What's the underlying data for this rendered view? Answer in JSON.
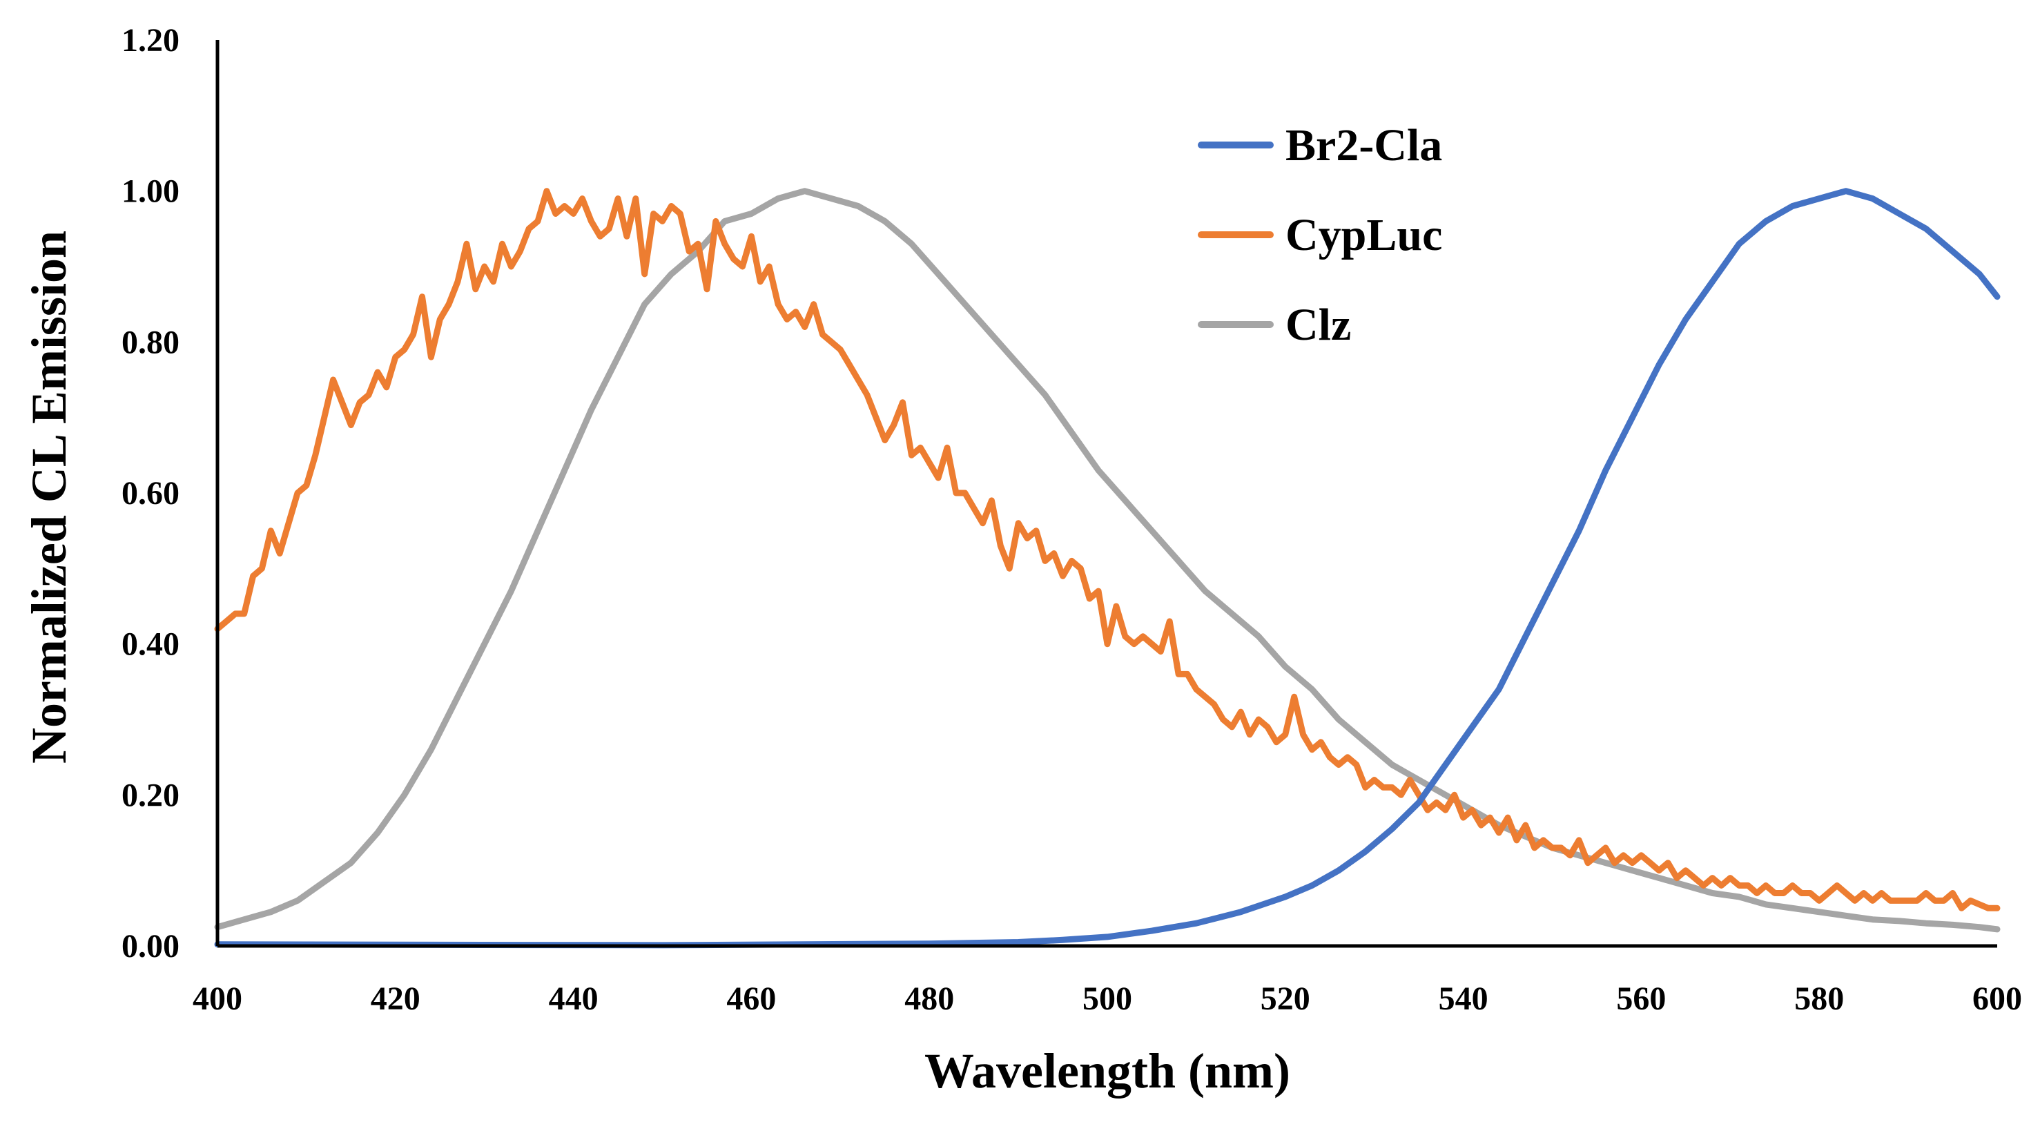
{
  "chart_data": {
    "type": "line",
    "title": "",
    "xlabel": "Wavelength (nm)",
    "ylabel": "Normalized CL Emission",
    "xlim": [
      400,
      600
    ],
    "ylim": [
      0,
      1.2
    ],
    "xticks": [
      "400",
      "420",
      "440",
      "460",
      "480",
      "500",
      "520",
      "540",
      "560",
      "580",
      "600"
    ],
    "yticks": [
      "0.00",
      "0.20",
      "0.40",
      "0.60",
      "0.80",
      "1.00",
      "1.20"
    ],
    "grid": false,
    "legend_position": "top-right",
    "series": [
      {
        "name": "Br2-Cla",
        "color": "#4472C4",
        "points": [
          [
            400,
            0.002
          ],
          [
            450,
            0.001
          ],
          [
            480,
            0.003
          ],
          [
            490,
            0.005
          ],
          [
            495,
            0.008
          ],
          [
            500,
            0.012
          ],
          [
            505,
            0.02
          ],
          [
            510,
            0.03
          ],
          [
            515,
            0.045
          ],
          [
            520,
            0.065
          ],
          [
            523,
            0.08
          ],
          [
            526,
            0.1
          ],
          [
            529,
            0.125
          ],
          [
            532,
            0.155
          ],
          [
            535,
            0.19
          ],
          [
            538,
            0.24
          ],
          [
            541,
            0.29
          ],
          [
            544,
            0.34
          ],
          [
            547,
            0.41
          ],
          [
            550,
            0.48
          ],
          [
            553,
            0.55
          ],
          [
            556,
            0.63
          ],
          [
            559,
            0.7
          ],
          [
            562,
            0.77
          ],
          [
            565,
            0.83
          ],
          [
            568,
            0.88
          ],
          [
            571,
            0.93
          ],
          [
            574,
            0.96
          ],
          [
            577,
            0.98
          ],
          [
            580,
            0.99
          ],
          [
            583,
            1.0
          ],
          [
            586,
            0.99
          ],
          [
            589,
            0.97
          ],
          [
            592,
            0.95
          ],
          [
            595,
            0.92
          ],
          [
            598,
            0.89
          ],
          [
            600,
            0.86
          ]
        ]
      },
      {
        "name": "CypLuc",
        "color": "#ED7D31",
        "points": [
          [
            400,
            0.42
          ],
          [
            401,
            0.43
          ],
          [
            402,
            0.44
          ],
          [
            403,
            0.44
          ],
          [
            404,
            0.49
          ],
          [
            405,
            0.5
          ],
          [
            406,
            0.55
          ],
          [
            407,
            0.52
          ],
          [
            408,
            0.56
          ],
          [
            409,
            0.6
          ],
          [
            410,
            0.61
          ],
          [
            411,
            0.65
          ],
          [
            412,
            0.7
          ],
          [
            413,
            0.75
          ],
          [
            414,
            0.72
          ],
          [
            415,
            0.69
          ],
          [
            416,
            0.72
          ],
          [
            417,
            0.73
          ],
          [
            418,
            0.76
          ],
          [
            419,
            0.74
          ],
          [
            420,
            0.78
          ],
          [
            421,
            0.79
          ],
          [
            422,
            0.81
          ],
          [
            423,
            0.86
          ],
          [
            424,
            0.78
          ],
          [
            425,
            0.83
          ],
          [
            426,
            0.85
          ],
          [
            427,
            0.88
          ],
          [
            428,
            0.93
          ],
          [
            429,
            0.87
          ],
          [
            430,
            0.9
          ],
          [
            431,
            0.88
          ],
          [
            432,
            0.93
          ],
          [
            433,
            0.9
          ],
          [
            434,
            0.92
          ],
          [
            435,
            0.95
          ],
          [
            436,
            0.96
          ],
          [
            437,
            1.0
          ],
          [
            438,
            0.97
          ],
          [
            439,
            0.98
          ],
          [
            440,
            0.97
          ],
          [
            441,
            0.99
          ],
          [
            442,
            0.96
          ],
          [
            443,
            0.94
          ],
          [
            444,
            0.95
          ],
          [
            445,
            0.99
          ],
          [
            446,
            0.94
          ],
          [
            447,
            0.99
          ],
          [
            448,
            0.89
          ],
          [
            449,
            0.97
          ],
          [
            450,
            0.96
          ],
          [
            451,
            0.98
          ],
          [
            452,
            0.97
          ],
          [
            453,
            0.92
          ],
          [
            454,
            0.93
          ],
          [
            455,
            0.87
          ],
          [
            456,
            0.96
          ],
          [
            457,
            0.93
          ],
          [
            458,
            0.91
          ],
          [
            459,
            0.9
          ],
          [
            460,
            0.94
          ],
          [
            461,
            0.88
          ],
          [
            462,
            0.9
          ],
          [
            463,
            0.85
          ],
          [
            464,
            0.83
          ],
          [
            465,
            0.84
          ],
          [
            466,
            0.82
          ],
          [
            467,
            0.85
          ],
          [
            468,
            0.81
          ],
          [
            469,
            0.8
          ],
          [
            470,
            0.79
          ],
          [
            471,
            0.77
          ],
          [
            472,
            0.75
          ],
          [
            473,
            0.73
          ],
          [
            474,
            0.7
          ],
          [
            475,
            0.67
          ],
          [
            476,
            0.69
          ],
          [
            477,
            0.72
          ],
          [
            478,
            0.65
          ],
          [
            479,
            0.66
          ],
          [
            480,
            0.64
          ],
          [
            481,
            0.62
          ],
          [
            482,
            0.66
          ],
          [
            483,
            0.6
          ],
          [
            484,
            0.6
          ],
          [
            485,
            0.58
          ],
          [
            486,
            0.56
          ],
          [
            487,
            0.59
          ],
          [
            488,
            0.53
          ],
          [
            489,
            0.5
          ],
          [
            490,
            0.56
          ],
          [
            491,
            0.54
          ],
          [
            492,
            0.55
          ],
          [
            493,
            0.51
          ],
          [
            494,
            0.52
          ],
          [
            495,
            0.49
          ],
          [
            496,
            0.51
          ],
          [
            497,
            0.5
          ],
          [
            498,
            0.46
          ],
          [
            499,
            0.47
          ],
          [
            500,
            0.4
          ],
          [
            501,
            0.45
          ],
          [
            502,
            0.41
          ],
          [
            503,
            0.4
          ],
          [
            504,
            0.41
          ],
          [
            505,
            0.4
          ],
          [
            506,
            0.39
          ],
          [
            507,
            0.43
          ],
          [
            508,
            0.36
          ],
          [
            509,
            0.36
          ],
          [
            510,
            0.34
          ],
          [
            511,
            0.33
          ],
          [
            512,
            0.32
          ],
          [
            513,
            0.3
          ],
          [
            514,
            0.29
          ],
          [
            515,
            0.31
          ],
          [
            516,
            0.28
          ],
          [
            517,
            0.3
          ],
          [
            518,
            0.29
          ],
          [
            519,
            0.27
          ],
          [
            520,
            0.28
          ],
          [
            521,
            0.33
          ],
          [
            522,
            0.28
          ],
          [
            523,
            0.26
          ],
          [
            524,
            0.27
          ],
          [
            525,
            0.25
          ],
          [
            526,
            0.24
          ],
          [
            527,
            0.25
          ],
          [
            528,
            0.24
          ],
          [
            529,
            0.21
          ],
          [
            530,
            0.22
          ],
          [
            531,
            0.21
          ],
          [
            532,
            0.21
          ],
          [
            533,
            0.2
          ],
          [
            534,
            0.22
          ],
          [
            535,
            0.2
          ],
          [
            536,
            0.18
          ],
          [
            537,
            0.19
          ],
          [
            538,
            0.18
          ],
          [
            539,
            0.2
          ],
          [
            540,
            0.17
          ],
          [
            541,
            0.18
          ],
          [
            542,
            0.16
          ],
          [
            543,
            0.17
          ],
          [
            544,
            0.15
          ],
          [
            545,
            0.17
          ],
          [
            546,
            0.14
          ],
          [
            547,
            0.16
          ],
          [
            548,
            0.13
          ],
          [
            549,
            0.14
          ],
          [
            550,
            0.13
          ],
          [
            551,
            0.13
          ],
          [
            552,
            0.12
          ],
          [
            553,
            0.14
          ],
          [
            554,
            0.11
          ],
          [
            555,
            0.12
          ],
          [
            556,
            0.13
          ],
          [
            557,
            0.11
          ],
          [
            558,
            0.12
          ],
          [
            559,
            0.11
          ],
          [
            560,
            0.12
          ],
          [
            561,
            0.11
          ],
          [
            562,
            0.1
          ],
          [
            563,
            0.11
          ],
          [
            564,
            0.09
          ],
          [
            565,
            0.1
          ],
          [
            566,
            0.09
          ],
          [
            567,
            0.08
          ],
          [
            568,
            0.09
          ],
          [
            569,
            0.08
          ],
          [
            570,
            0.09
          ],
          [
            571,
            0.08
          ],
          [
            572,
            0.08
          ],
          [
            573,
            0.07
          ],
          [
            574,
            0.08
          ],
          [
            575,
            0.07
          ],
          [
            576,
            0.07
          ],
          [
            577,
            0.08
          ],
          [
            578,
            0.07
          ],
          [
            579,
            0.07
          ],
          [
            580,
            0.06
          ],
          [
            581,
            0.07
          ],
          [
            582,
            0.08
          ],
          [
            583,
            0.07
          ],
          [
            584,
            0.06
          ],
          [
            585,
            0.07
          ],
          [
            586,
            0.06
          ],
          [
            587,
            0.07
          ],
          [
            588,
            0.06
          ],
          [
            589,
            0.06
          ],
          [
            590,
            0.06
          ],
          [
            591,
            0.06
          ],
          [
            592,
            0.07
          ],
          [
            593,
            0.06
          ],
          [
            594,
            0.06
          ],
          [
            595,
            0.07
          ],
          [
            596,
            0.05
          ],
          [
            597,
            0.06
          ],
          [
            598,
            0.055
          ],
          [
            599,
            0.05
          ],
          [
            600,
            0.05
          ]
        ]
      },
      {
        "name": "Clz",
        "color": "#A5A5A5",
        "points": [
          [
            400,
            0.025
          ],
          [
            403,
            0.035
          ],
          [
            406,
            0.045
          ],
          [
            409,
            0.06
          ],
          [
            412,
            0.085
          ],
          [
            415,
            0.11
          ],
          [
            418,
            0.15
          ],
          [
            421,
            0.2
          ],
          [
            424,
            0.26
          ],
          [
            427,
            0.33
          ],
          [
            430,
            0.4
          ],
          [
            433,
            0.47
          ],
          [
            436,
            0.55
          ],
          [
            439,
            0.63
          ],
          [
            442,
            0.71
          ],
          [
            445,
            0.78
          ],
          [
            448,
            0.85
          ],
          [
            451,
            0.89
          ],
          [
            454,
            0.92
          ],
          [
            457,
            0.96
          ],
          [
            460,
            0.97
          ],
          [
            463,
            0.99
          ],
          [
            466,
            1.0
          ],
          [
            469,
            0.99
          ],
          [
            472,
            0.98
          ],
          [
            475,
            0.96
          ],
          [
            478,
            0.93
          ],
          [
            481,
            0.89
          ],
          [
            484,
            0.85
          ],
          [
            487,
            0.81
          ],
          [
            490,
            0.77
          ],
          [
            493,
            0.73
          ],
          [
            496,
            0.68
          ],
          [
            499,
            0.63
          ],
          [
            502,
            0.59
          ],
          [
            505,
            0.55
          ],
          [
            508,
            0.51
          ],
          [
            511,
            0.47
          ],
          [
            514,
            0.44
          ],
          [
            517,
            0.41
          ],
          [
            520,
            0.37
          ],
          [
            523,
            0.34
          ],
          [
            526,
            0.3
          ],
          [
            529,
            0.27
          ],
          [
            532,
            0.24
          ],
          [
            535,
            0.22
          ],
          [
            538,
            0.2
          ],
          [
            541,
            0.18
          ],
          [
            544,
            0.16
          ],
          [
            547,
            0.145
          ],
          [
            550,
            0.13
          ],
          [
            553,
            0.12
          ],
          [
            556,
            0.11
          ],
          [
            559,
            0.1
          ],
          [
            562,
            0.09
          ],
          [
            565,
            0.08
          ],
          [
            568,
            0.07
          ],
          [
            571,
            0.065
          ],
          [
            574,
            0.055
          ],
          [
            577,
            0.05
          ],
          [
            580,
            0.045
          ],
          [
            583,
            0.04
          ],
          [
            586,
            0.035
          ],
          [
            589,
            0.033
          ],
          [
            592,
            0.03
          ],
          [
            595,
            0.028
          ],
          [
            598,
            0.025
          ],
          [
            600,
            0.022
          ]
        ]
      }
    ]
  }
}
